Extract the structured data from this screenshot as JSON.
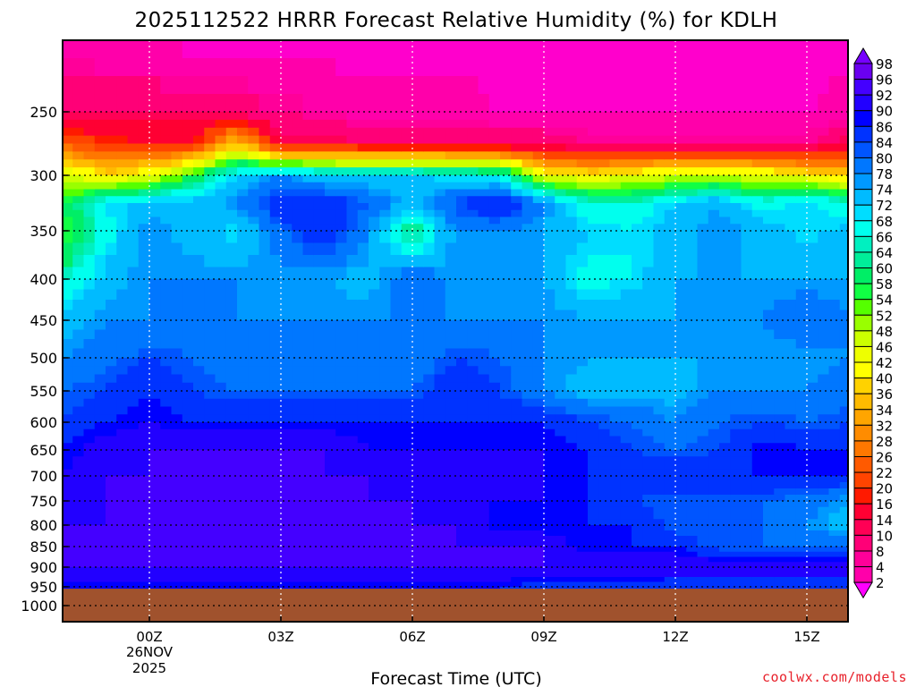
{
  "chart_data": {
    "type": "heatmap",
    "title": "2025112522 HRRR Forecast Relative Humidity (%) for KDLH",
    "xlabel": "Forecast Time (UTC)",
    "ylabel": "",
    "x_hours": [
      -2,
      -1,
      0,
      1,
      2,
      3,
      4,
      5,
      6,
      7,
      8,
      9,
      10,
      11,
      12,
      13,
      14,
      15,
      16
    ],
    "xlim": [
      -2,
      16
    ],
    "x_ticks": [
      {
        "hour": 0,
        "label": "00Z"
      },
      {
        "hour": 3,
        "label": "03Z"
      },
      {
        "hour": 6,
        "label": "06Z"
      },
      {
        "hour": 9,
        "label": "09Z"
      },
      {
        "hour": 12,
        "label": "12Z"
      },
      {
        "hour": 15,
        "label": "15Z"
      }
    ],
    "date_label": [
      "26NOV",
      "2025"
    ],
    "y_levels_hPa": [
      200,
      250,
      275,
      300,
      325,
      350,
      400,
      450,
      500,
      550,
      600,
      650,
      700,
      750,
      800,
      850,
      900,
      950,
      1000
    ],
    "y_ticks": [
      250,
      300,
      350,
      400,
      450,
      500,
      550,
      600,
      650,
      700,
      750,
      800,
      850,
      900,
      950,
      1000
    ],
    "ylim": [
      200,
      1050
    ],
    "surface_pressure_hPa": 955,
    "grid": true,
    "values": [
      [
        6,
        4,
        4,
        2,
        2,
        2,
        2,
        2,
        2,
        2,
        2,
        2,
        2,
        2,
        2,
        2,
        2,
        2,
        2
      ],
      [
        14,
        14,
        14,
        14,
        12,
        10,
        8,
        6,
        6,
        6,
        4,
        4,
        4,
        4,
        4,
        4,
        4,
        4,
        6
      ],
      [
        26,
        22,
        20,
        20,
        40,
        16,
        16,
        14,
        14,
        14,
        14,
        14,
        10,
        10,
        10,
        10,
        10,
        10,
        16
      ],
      [
        50,
        42,
        46,
        60,
        74,
        80,
        74,
        74,
        74,
        72,
        70,
        46,
        44,
        46,
        50,
        50,
        48,
        44,
        40
      ],
      [
        60,
        72,
        76,
        76,
        80,
        90,
        90,
        84,
        76,
        86,
        92,
        80,
        68,
        68,
        74,
        78,
        70,
        74,
        68
      ],
      [
        56,
        70,
        80,
        76,
        72,
        84,
        90,
        80,
        62,
        80,
        80,
        78,
        74,
        72,
        76,
        80,
        76,
        72,
        76
      ],
      [
        66,
        76,
        80,
        80,
        80,
        78,
        78,
        76,
        84,
        78,
        78,
        78,
        70,
        72,
        78,
        78,
        78,
        78,
        78
      ],
      [
        76,
        80,
        80,
        80,
        80,
        80,
        80,
        80,
        80,
        80,
        80,
        80,
        78,
        78,
        78,
        80,
        80,
        84,
        80
      ],
      [
        80,
        82,
        86,
        84,
        80,
        80,
        80,
        80,
        80,
        86,
        84,
        80,
        78,
        78,
        78,
        78,
        78,
        78,
        80
      ],
      [
        84,
        86,
        90,
        86,
        84,
        84,
        84,
        84,
        84,
        90,
        86,
        80,
        76,
        76,
        76,
        80,
        80,
        80,
        82
      ],
      [
        86,
        90,
        92,
        90,
        90,
        90,
        90,
        90,
        90,
        90,
        90,
        90,
        86,
        84,
        80,
        84,
        86,
        84,
        86
      ],
      [
        90,
        94,
        96,
        96,
        96,
        96,
        96,
        92,
        92,
        92,
        92,
        92,
        90,
        86,
        84,
        86,
        92,
        90,
        90
      ],
      [
        92,
        96,
        96,
        96,
        96,
        96,
        96,
        96,
        92,
        92,
        92,
        92,
        90,
        90,
        90,
        90,
        90,
        90,
        90
      ],
      [
        94,
        96,
        96,
        96,
        96,
        97,
        96,
        96,
        96,
        92,
        92,
        92,
        90,
        86,
        84,
        84,
        84,
        82,
        78
      ],
      [
        96,
        96,
        96,
        96,
        96,
        96,
        96,
        96,
        96,
        96,
        90,
        90,
        90,
        90,
        84,
        84,
        84,
        80,
        74
      ],
      [
        96,
        96,
        96,
        96,
        96,
        96,
        96,
        96,
        96,
        96,
        96,
        96,
        90,
        90,
        90,
        84,
        84,
        84,
        84
      ],
      [
        96,
        96,
        96,
        96,
        96,
        96,
        96,
        96,
        96,
        96,
        96,
        96,
        96,
        96,
        96,
        96,
        96,
        96,
        96
      ],
      [
        90,
        90,
        90,
        90,
        90,
        90,
        90,
        90,
        90,
        90,
        90,
        88,
        88,
        88,
        86,
        86,
        86,
        86,
        86
      ],
      [
        90,
        90,
        90,
        90,
        90,
        90,
        90,
        90,
        90,
        90,
        90,
        88,
        88,
        88,
        86,
        86,
        86,
        86,
        86
      ]
    ],
    "colorbar": {
      "labels": [
        98,
        96,
        92,
        90,
        86,
        84,
        80,
        78,
        74,
        72,
        68,
        66,
        64,
        60,
        58,
        54,
        52,
        48,
        46,
        42,
        40,
        36,
        34,
        32,
        28,
        26,
        22,
        20,
        16,
        14,
        10,
        8,
        4,
        2
      ],
      "colors_top_to_bottom": [
        "#7700ff",
        "#6a00f0",
        "#4400ff",
        "#2200ff",
        "#0000ff",
        "#0033ff",
        "#0055ff",
        "#0077ff",
        "#0099ff",
        "#00bbff",
        "#00ddff",
        "#00ffee",
        "#00f0c0",
        "#00ee99",
        "#00ee66",
        "#11ff44",
        "#55ff00",
        "#99ff00",
        "#ccff00",
        "#eeff00",
        "#ffff00",
        "#ffd200",
        "#ffbb00",
        "#ffa500",
        "#ff8c00",
        "#ff7700",
        "#ff5a00",
        "#ff4400",
        "#ff1a00",
        "#ff0033",
        "#ff0055",
        "#ff0077",
        "#ff0099",
        "#ff00aa",
        "#ff00cc",
        "#ff00ff"
      ]
    },
    "ground_color": "#a0522d"
  },
  "credit": "coolwx.com/models",
  "credit_color": "#e8202a"
}
